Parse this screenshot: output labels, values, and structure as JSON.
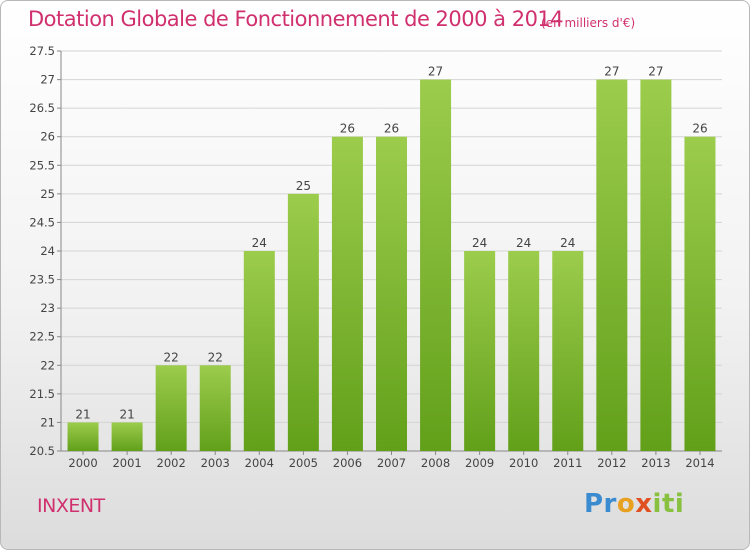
{
  "chart": {
    "title": "Dotation Globale de Fonctionnement de 2000 à 2014",
    "unit": "(en milliers d'€)",
    "commune": "INXENT",
    "logo": "Proxiti"
  },
  "colors": {
    "bar_top": "#9ccc4c",
    "bar_bottom": "#62a01a",
    "title": "#d0306e"
  },
  "chart_data": {
    "type": "bar",
    "title": "Dotation Globale de Fonctionnement de 2000 à 2014",
    "categories": [
      "2000",
      "2001",
      "2002",
      "2003",
      "2004",
      "2005",
      "2006",
      "2007",
      "2008",
      "2009",
      "2010",
      "2011",
      "2012",
      "2013",
      "2014"
    ],
    "values": [
      21,
      21,
      22,
      22,
      24,
      25,
      26,
      26,
      27,
      24,
      24,
      24,
      27,
      27,
      26
    ],
    "ylim": [
      20.5,
      27.5
    ],
    "yticks": [
      "20.5",
      "21",
      "21.5",
      "22",
      "22.5",
      "23",
      "23.5",
      "24",
      "24.5",
      "25",
      "25.5",
      "26",
      "26.5",
      "27",
      "27.5"
    ],
    "grid": true,
    "legend": "none"
  }
}
